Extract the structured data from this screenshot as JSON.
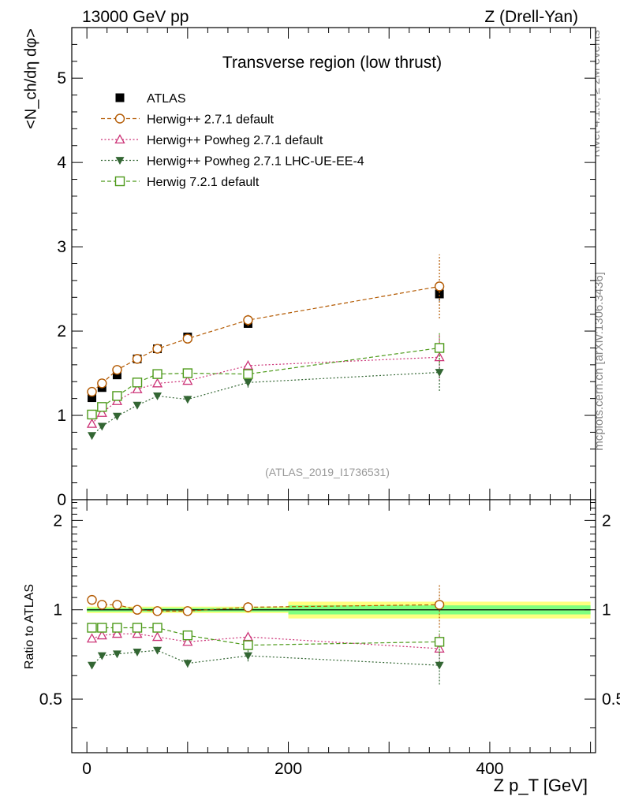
{
  "header": {
    "left": "13000 GeV pp",
    "right": "Z (Drell-Yan)"
  },
  "side_labels": {
    "rivet": "Rivet 4.1.0, ≥ 2M events",
    "mcplots": "mcplots.cern.ch [arXiv:1306.3436]"
  },
  "chart_data": [
    {
      "type": "scatter",
      "title": "Transverse region (low thrust)",
      "watermark": "(ATLAS_2019_I1736531)",
      "ylabel": "<N_ch/dη dφ>",
      "xlabel": "Z p_T [GeV]",
      "xlim": [
        -15,
        505
      ],
      "ylim": [
        0,
        5.6
      ],
      "yticks": [
        0,
        1,
        2,
        3,
        4,
        5
      ],
      "legend_position": "top-left",
      "x": [
        5,
        15,
        30,
        50,
        70,
        100,
        160,
        350
      ],
      "series": [
        {
          "name": "ATLAS",
          "color": "#000000",
          "marker": "filled-square",
          "line": "none",
          "values": [
            1.21,
            1.33,
            1.48,
            1.67,
            1.79,
            1.93,
            2.09,
            2.44
          ],
          "errors": [
            0.02,
            0.02,
            0.03,
            0.03,
            0.04,
            0.04,
            0.05,
            0.08
          ]
        },
        {
          "name": "Herwig++ 2.7.1 default",
          "color": "#b35900",
          "marker": "open-circle",
          "line": "dashed",
          "values": [
            1.28,
            1.38,
            1.54,
            1.67,
            1.79,
            1.91,
            2.13,
            2.53
          ],
          "errors": [
            0.02,
            0.02,
            0.02,
            0.03,
            0.03,
            0.04,
            0.07,
            0.38
          ]
        },
        {
          "name": "Herwig++ Powheg 2.7.1 default",
          "color": "#cc3377",
          "marker": "open-triangle",
          "line": "dotted",
          "values": [
            0.9,
            1.03,
            1.17,
            1.31,
            1.38,
            1.41,
            1.59,
            1.69
          ],
          "errors": [
            0.02,
            0.02,
            0.02,
            0.03,
            0.03,
            0.03,
            0.06,
            0.28
          ]
        },
        {
          "name": "Herwig++ Powheg 2.7.1 LHC-UE-EE-4",
          "color": "#336633",
          "marker": "filled-triangle-down",
          "line": "dotted",
          "values": [
            0.76,
            0.87,
            0.99,
            1.12,
            1.23,
            1.19,
            1.39,
            1.51
          ],
          "errors": [
            0.02,
            0.02,
            0.02,
            0.03,
            0.03,
            0.04,
            0.06,
            0.22
          ]
        },
        {
          "name": "Herwig 7.2.1 default",
          "color": "#4d9a1a",
          "marker": "open-square",
          "line": "dashed",
          "values": [
            1.01,
            1.1,
            1.23,
            1.39,
            1.49,
            1.5,
            1.49,
            1.8
          ],
          "errors": [
            0.02,
            0.02,
            0.02,
            0.03,
            0.03,
            0.03,
            0.05,
            0.18
          ]
        }
      ]
    },
    {
      "type": "scatter",
      "title": "",
      "ylabel": "Ratio to ATLAS",
      "xlabel": "Z p_T [GeV]",
      "xlim": [
        -15,
        505
      ],
      "ylim": [
        0.33,
        2.35
      ],
      "log_y": true,
      "yticks": [
        0.5,
        1,
        2
      ],
      "xticks": [
        0,
        200,
        400
      ],
      "reference_band": {
        "bins": [
          [
            0,
            200
          ],
          [
            200,
            500
          ]
        ],
        "inner": [
          [
            0.985,
            1.015
          ],
          [
            0.965,
            1.035
          ]
        ],
        "outer": [
          [
            0.975,
            1.025
          ],
          [
            0.935,
            1.065
          ]
        ],
        "inner_color": "#7fff7f",
        "outer_color": "#ffff80"
      },
      "x": [
        5,
        15,
        30,
        50,
        70,
        100,
        160,
        350
      ],
      "series": [
        {
          "name": "Herwig++ 2.7.1 default",
          "color": "#b35900",
          "marker": "open-circle",
          "line": "dashed",
          "values": [
            1.08,
            1.04,
            1.04,
            1.0,
            0.99,
            0.99,
            1.02,
            1.04
          ],
          "errors": [
            0.02,
            0.02,
            0.02,
            0.02,
            0.02,
            0.02,
            0.04,
            0.17
          ]
        },
        {
          "name": "Herwig++ Powheg 2.7.1 default",
          "color": "#cc3377",
          "marker": "open-triangle",
          "line": "dotted",
          "values": [
            0.8,
            0.82,
            0.83,
            0.83,
            0.81,
            0.78,
            0.81,
            0.74
          ],
          "errors": [
            0.01,
            0.01,
            0.01,
            0.01,
            0.02,
            0.02,
            0.04,
            0.09
          ]
        },
        {
          "name": "Herwig++ Powheg 2.7.1 LHC-UE-EE-4",
          "color": "#336633",
          "marker": "filled-triangle-down",
          "line": "dotted",
          "values": [
            0.65,
            0.7,
            0.71,
            0.72,
            0.73,
            0.66,
            0.7,
            0.65
          ],
          "errors": [
            0.01,
            0.01,
            0.01,
            0.01,
            0.02,
            0.02,
            0.03,
            0.09
          ]
        },
        {
          "name": "Herwig 7.2.1 default",
          "color": "#4d9a1a",
          "marker": "open-square",
          "line": "dashed",
          "values": [
            0.87,
            0.87,
            0.87,
            0.87,
            0.87,
            0.82,
            0.76,
            0.78
          ],
          "errors": [
            0.01,
            0.01,
            0.01,
            0.01,
            0.02,
            0.02,
            0.03,
            0.07
          ]
        }
      ]
    }
  ]
}
